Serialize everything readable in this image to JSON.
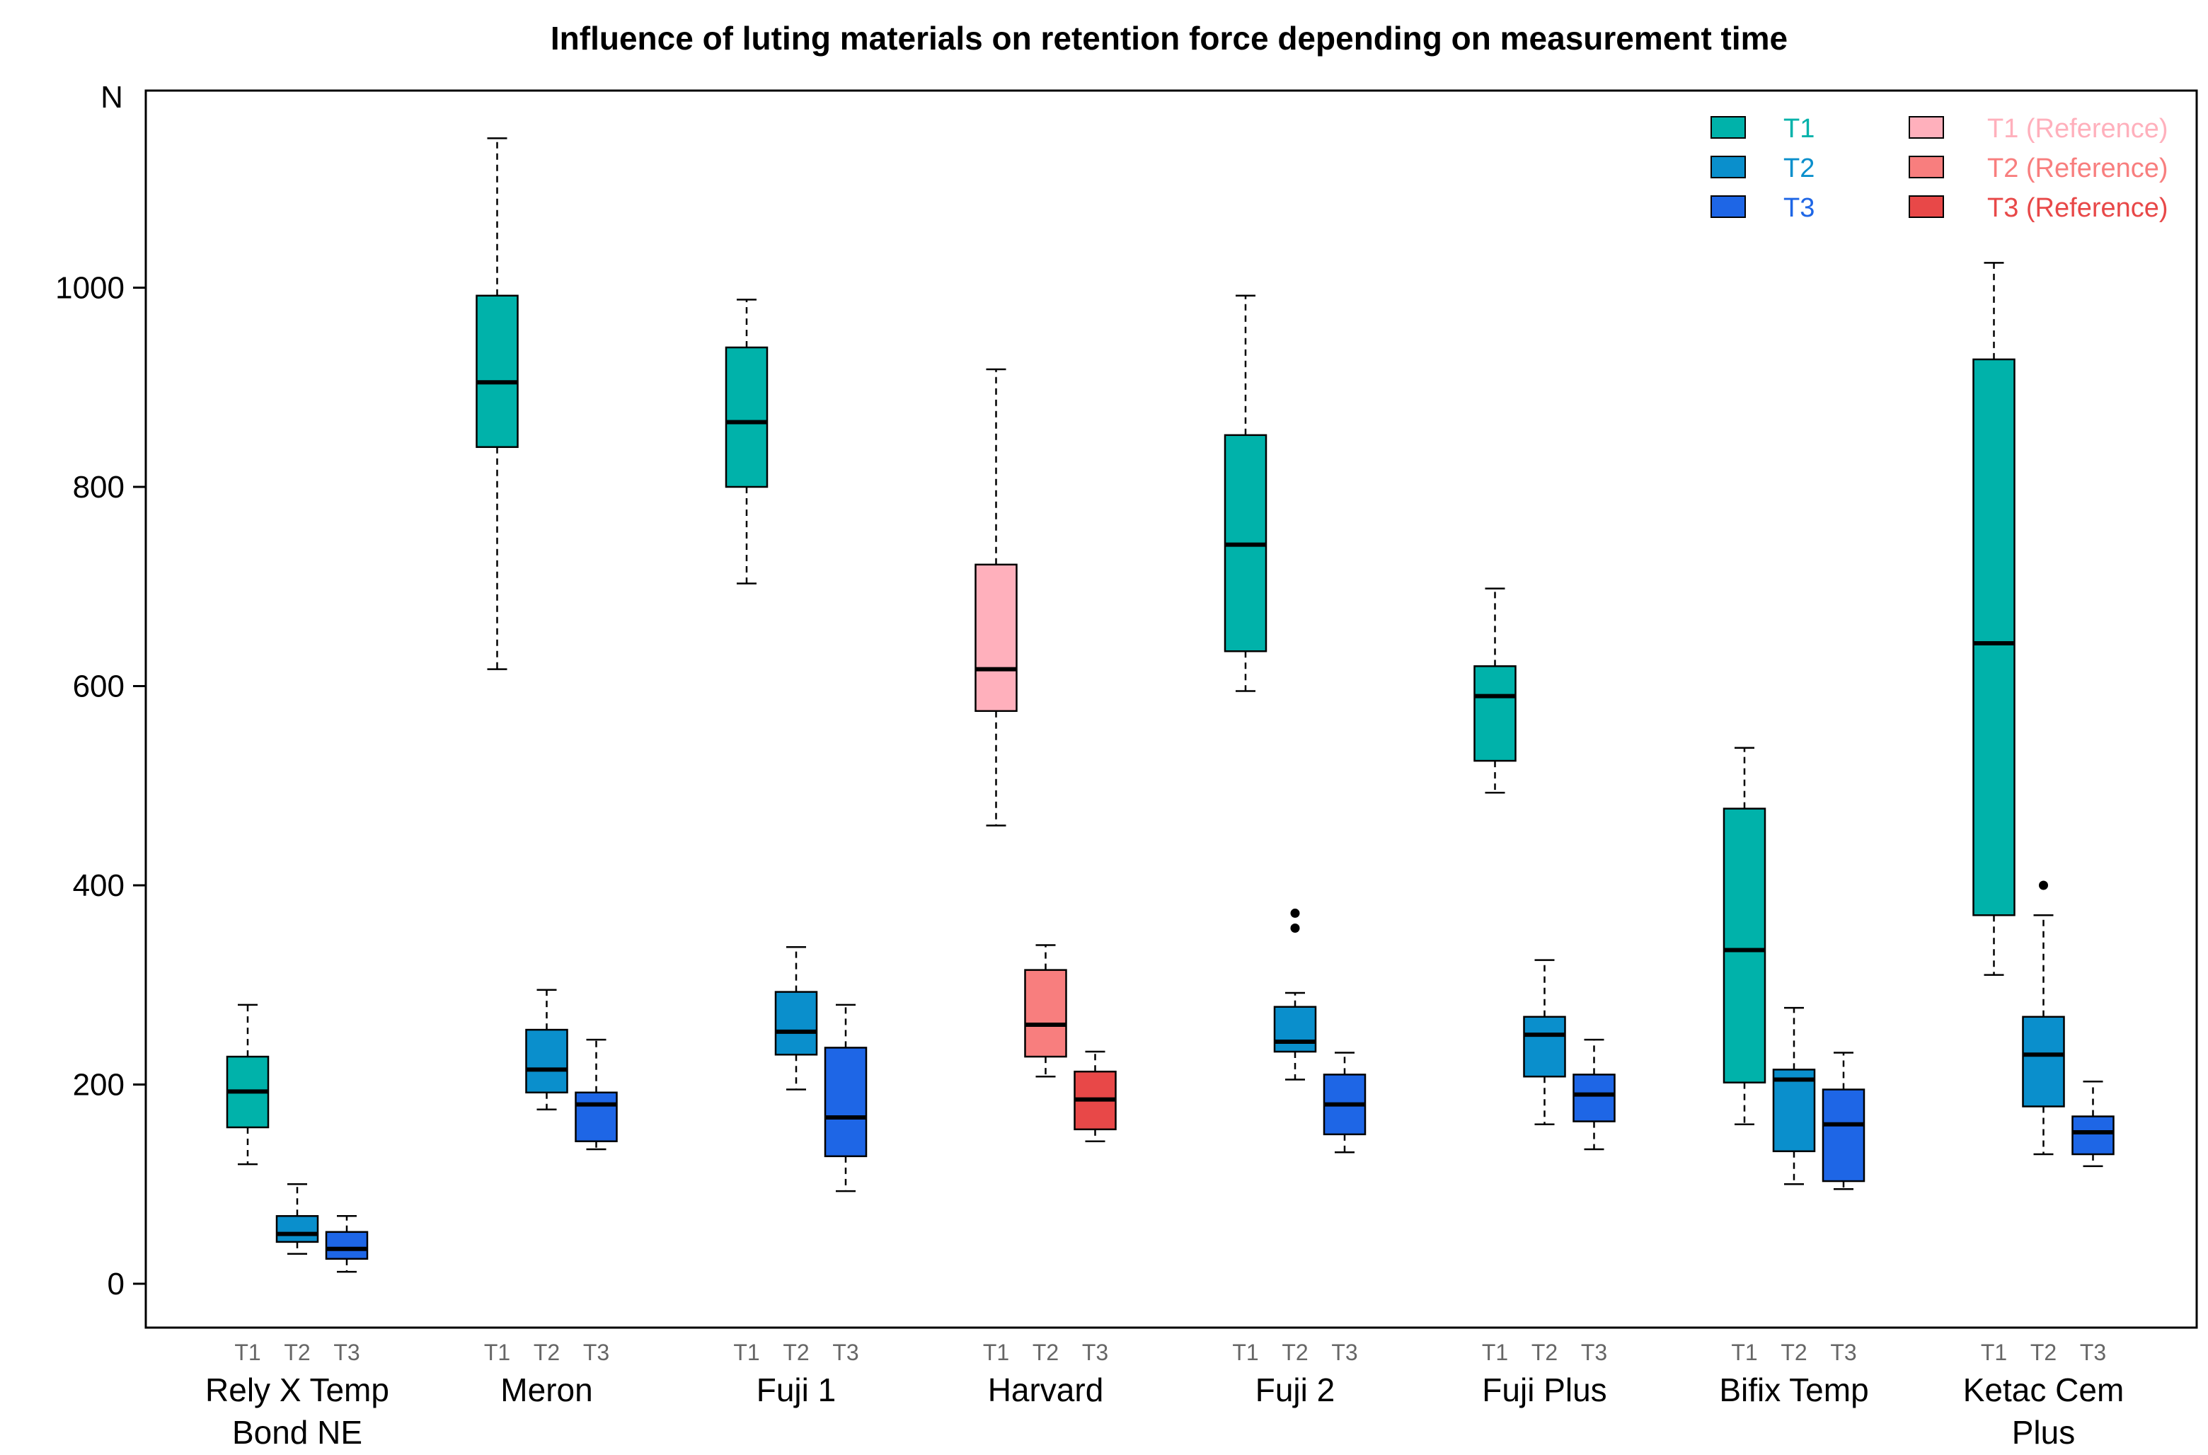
{
  "chart_data": {
    "type": "boxplot",
    "title": "Influence of luting materials on retention force depending on measurement time",
    "ylabel": "N",
    "ylim": [
      -45,
      1200
    ],
    "yticks": [
      0,
      200,
      400,
      600,
      800,
      1000
    ],
    "subcategories": [
      "T1",
      "T2",
      "T3"
    ],
    "groups": [
      {
        "name_lines": [
          "Rely X Temp",
          "Bond NE"
        ],
        "reference": false,
        "boxes": [
          {
            "t": "T1",
            "whisker_low": 120,
            "q1": 157,
            "median": 193,
            "q3": 228,
            "whisker_high": 280,
            "outliers": []
          },
          {
            "t": "T2",
            "whisker_low": 30,
            "q1": 42,
            "median": 50,
            "q3": 68,
            "whisker_high": 100,
            "outliers": []
          },
          {
            "t": "T3",
            "whisker_low": 12,
            "q1": 25,
            "median": 35,
            "q3": 52,
            "whisker_high": 68,
            "outliers": []
          }
        ]
      },
      {
        "name_lines": [
          "Meron"
        ],
        "reference": false,
        "boxes": [
          {
            "t": "T1",
            "whisker_low": 617,
            "q1": 840,
            "median": 905,
            "q3": 992,
            "whisker_high": 1150,
            "outliers": []
          },
          {
            "t": "T2",
            "whisker_low": 175,
            "q1": 192,
            "median": 215,
            "q3": 255,
            "whisker_high": 295,
            "outliers": []
          },
          {
            "t": "T3",
            "whisker_low": 135,
            "q1": 143,
            "median": 180,
            "q3": 192,
            "whisker_high": 245,
            "outliers": []
          }
        ]
      },
      {
        "name_lines": [
          "Fuji 1"
        ],
        "reference": false,
        "boxes": [
          {
            "t": "T1",
            "whisker_low": 703,
            "q1": 800,
            "median": 865,
            "q3": 940,
            "whisker_high": 988,
            "outliers": []
          },
          {
            "t": "T2",
            "whisker_low": 195,
            "q1": 230,
            "median": 253,
            "q3": 293,
            "whisker_high": 338,
            "outliers": []
          },
          {
            "t": "T3",
            "whisker_low": 93,
            "q1": 128,
            "median": 167,
            "q3": 237,
            "whisker_high": 280,
            "outliers": []
          }
        ]
      },
      {
        "name_lines": [
          "Harvard"
        ],
        "reference": true,
        "boxes": [
          {
            "t": "T1",
            "whisker_low": 460,
            "q1": 575,
            "median": 617,
            "q3": 722,
            "whisker_high": 918,
            "outliers": []
          },
          {
            "t": "T2",
            "whisker_low": 208,
            "q1": 228,
            "median": 260,
            "q3": 315,
            "whisker_high": 340,
            "outliers": []
          },
          {
            "t": "T3",
            "whisker_low": 143,
            "q1": 155,
            "median": 185,
            "q3": 213,
            "whisker_high": 233,
            "outliers": []
          }
        ]
      },
      {
        "name_lines": [
          "Fuji 2"
        ],
        "reference": false,
        "boxes": [
          {
            "t": "T1",
            "whisker_low": 595,
            "q1": 635,
            "median": 742,
            "q3": 852,
            "whisker_high": 992,
            "outliers": []
          },
          {
            "t": "T2",
            "whisker_low": 205,
            "q1": 233,
            "median": 243,
            "q3": 278,
            "whisker_high": 292,
            "outliers": [
              357,
              372
            ]
          },
          {
            "t": "T3",
            "whisker_low": 132,
            "q1": 150,
            "median": 180,
            "q3": 210,
            "whisker_high": 232,
            "outliers": []
          }
        ]
      },
      {
        "name_lines": [
          "Fuji Plus"
        ],
        "reference": false,
        "boxes": [
          {
            "t": "T1",
            "whisker_low": 493,
            "q1": 525,
            "median": 590,
            "q3": 620,
            "whisker_high": 698,
            "outliers": []
          },
          {
            "t": "T2",
            "whisker_low": 160,
            "q1": 208,
            "median": 250,
            "q3": 268,
            "whisker_high": 325,
            "outliers": []
          },
          {
            "t": "T3",
            "whisker_low": 135,
            "q1": 163,
            "median": 190,
            "q3": 210,
            "whisker_high": 245,
            "outliers": []
          }
        ]
      },
      {
        "name_lines": [
          "Bifix Temp"
        ],
        "reference": false,
        "boxes": [
          {
            "t": "T1",
            "whisker_low": 160,
            "q1": 202,
            "median": 335,
            "q3": 477,
            "whisker_high": 538,
            "outliers": []
          },
          {
            "t": "T2",
            "whisker_low": 100,
            "q1": 133,
            "median": 205,
            "q3": 215,
            "whisker_high": 277,
            "outliers": []
          },
          {
            "t": "T3",
            "whisker_low": 95,
            "q1": 103,
            "median": 160,
            "q3": 195,
            "whisker_high": 232,
            "outliers": []
          }
        ]
      },
      {
        "name_lines": [
          "Ketac Cem",
          "Plus"
        ],
        "reference": false,
        "boxes": [
          {
            "t": "T1",
            "whisker_low": 310,
            "q1": 370,
            "median": 643,
            "q3": 928,
            "whisker_high": 1025,
            "outliers": []
          },
          {
            "t": "T2",
            "whisker_low": 130,
            "q1": 178,
            "median": 230,
            "q3": 268,
            "whisker_high": 370,
            "outliers": [
              400
            ]
          },
          {
            "t": "T3",
            "whisker_low": 118,
            "q1": 130,
            "median": 152,
            "q3": 168,
            "whisker_high": 203,
            "outliers": []
          }
        ]
      }
    ],
    "legend": {
      "position": "top-right",
      "entries": [
        {
          "label": "T1",
          "fill": "#00b2aa",
          "text_color": "#00b2aa"
        },
        {
          "label": "T2",
          "fill": "#0a8fcc",
          "text_color": "#0a8fcc"
        },
        {
          "label": "T3",
          "fill": "#1e66e6",
          "text_color": "#1e66e6"
        },
        {
          "label": "T1 (Reference)",
          "fill": "#ffb0bc",
          "text_color": "#ffb0bc"
        },
        {
          "label": "T2 (Reference)",
          "fill": "#f87e7e",
          "text_color": "#f87e7e"
        },
        {
          "label": "T3 (Reference)",
          "fill": "#e84848",
          "text_color": "#e84848"
        }
      ]
    },
    "colors": {
      "T1": "#00b2aa",
      "T2": "#0a8fcc",
      "T3": "#1e66e6",
      "T1_ref": "#ffb0bc",
      "T2_ref": "#f87e7e",
      "T3_ref": "#e84848"
    }
  }
}
